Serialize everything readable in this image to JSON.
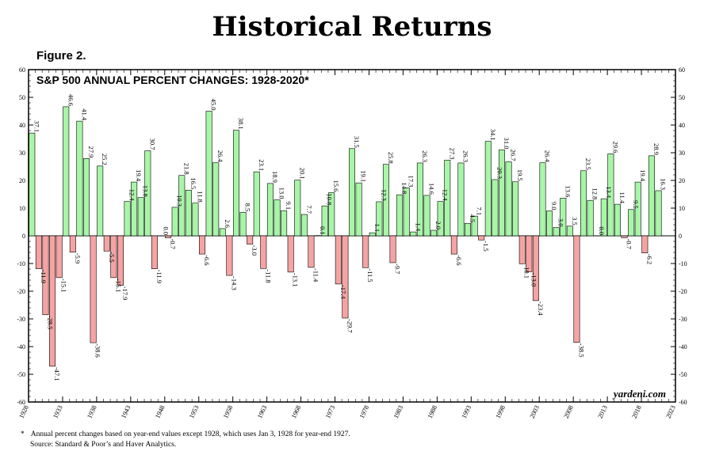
{
  "header": {
    "title": "Historical Returns",
    "figure_label": "Figure 2."
  },
  "watermark": "yardeni.com",
  "footnote": {
    "marker": "*",
    "line1": "Annual percent changes based on year-end values except 1928, which uses Jan 3, 1928 for year-end 1927.",
    "line2": "Source: Standard & Poor’s and Haver Analytics."
  },
  "colors": {
    "positive": "#a8f5a8",
    "negative": "#f5a3a3",
    "bar_edge": "#000000"
  },
  "chart_data": {
    "type": "bar",
    "title": "S&P 500 ANNUAL PERCENT CHANGES: 1928-2020*",
    "xlabel": "",
    "ylabel": "",
    "ylim": [
      -60,
      60
    ],
    "yticks": [
      -60,
      -50,
      -40,
      -30,
      -20,
      -10,
      0,
      10,
      20,
      30,
      40,
      50,
      60
    ],
    "xlim": [
      1928,
      2023
    ],
    "xticks": [
      1928,
      1933,
      1938,
      1943,
      1948,
      1953,
      1958,
      1963,
      1968,
      1973,
      1978,
      1983,
      1988,
      1993,
      1998,
      2003,
      2008,
      2013,
      2018,
      2023
    ],
    "grid": false,
    "years": [
      1928,
      1929,
      1930,
      1931,
      1932,
      1933,
      1934,
      1935,
      1936,
      1937,
      1938,
      1939,
      1940,
      1941,
      1942,
      1943,
      1944,
      1945,
      1946,
      1947,
      1948,
      1949,
      1950,
      1951,
      1952,
      1953,
      1954,
      1955,
      1956,
      1957,
      1958,
      1959,
      1960,
      1961,
      1962,
      1963,
      1964,
      1965,
      1966,
      1967,
      1968,
      1969,
      1970,
      1971,
      1972,
      1973,
      1974,
      1975,
      1976,
      1977,
      1978,
      1979,
      1980,
      1981,
      1982,
      1983,
      1984,
      1985,
      1986,
      1987,
      1988,
      1989,
      1990,
      1991,
      1992,
      1993,
      1994,
      1995,
      1996,
      1997,
      1998,
      1999,
      2000,
      2001,
      2002,
      2003,
      2004,
      2005,
      2006,
      2007,
      2008,
      2009,
      2010,
      2011,
      2012,
      2013,
      2014,
      2015,
      2016,
      2017,
      2018,
      2019,
      2020
    ],
    "values": [
      37.1,
      -11.9,
      -28.5,
      -47.1,
      -15.1,
      46.6,
      -5.9,
      41.4,
      27.9,
      -38.6,
      25.2,
      -5.5,
      -15.1,
      -17.9,
      12.4,
      19.4,
      13.8,
      30.7,
      -11.9,
      0.0,
      -0.7,
      10.3,
      21.8,
      16.5,
      11.8,
      -6.6,
      45.0,
      26.4,
      2.6,
      -14.3,
      38.1,
      8.5,
      -3.0,
      23.1,
      -11.8,
      18.9,
      13.0,
      9.1,
      -13.1,
      20.1,
      7.7,
      -11.4,
      0.1,
      10.8,
      15.6,
      -17.4,
      -29.7,
      31.5,
      19.1,
      -11.5,
      1.1,
      12.3,
      25.8,
      -9.7,
      14.8,
      17.3,
      1.4,
      26.3,
      14.6,
      2.0,
      12.4,
      27.3,
      -6.6,
      26.3,
      4.5,
      7.1,
      -1.5,
      34.1,
      20.3,
      31.0,
      26.7,
      19.5,
      -10.1,
      -13.0,
      -23.4,
      26.4,
      9.0,
      3.0,
      13.6,
      3.5,
      -38.5,
      23.5,
      12.8,
      0.0,
      13.4,
      29.6,
      11.4,
      -0.7,
      9.5,
      19.4,
      -6.2,
      28.9,
      16.3
    ],
    "labels": [
      "37.1",
      "-11.9",
      "-28.5",
      "-47.1",
      "-15.1",
      "46.6",
      "-5.9",
      "41.4",
      "27.9",
      "-38.6",
      "25.2",
      "-5.5",
      "-15.1",
      "-17.9",
      "12.4",
      "19.4",
      "13.8",
      "30.7",
      "-11.9",
      "0.0",
      "-0.7",
      "10.3",
      "21.8",
      "16.5",
      "11.8",
      "-6.6",
      "45.0",
      "26.4",
      "2.6",
      "-14.3",
      "38.1",
      "8.5",
      "-3.0",
      "23.1",
      "-11.8",
      "18.9",
      "13.0",
      "9.1",
      "-13.1",
      "20.1",
      "7.7",
      "-11.4",
      "0.1",
      "10.8",
      "15.6",
      "-17.4",
      "-29.7",
      "31.5",
      "19.1",
      "-11.5",
      "1.1",
      "12.3",
      "25.8",
      "-9.7",
      "14.8",
      "17.3",
      "1.4",
      "26.3",
      "14.6",
      "2.0",
      "12.4",
      "27.3",
      "-6.6",
      "26.3",
      "4.5",
      "7.1",
      "-1.5",
      "34.1",
      "20.3",
      "31.0",
      "26.7",
      "19.5",
      "-10.1",
      "-13.0",
      "-23.4",
      "26.4",
      "9.0",
      "3.0",
      "13.6",
      "3.5",
      "-38.5",
      "23.5",
      "12.8",
      "0.0",
      "13.4",
      "29.6",
      "11.4",
      "-0.7",
      "9.5",
      "19.4",
      "-6.2",
      "28.9",
      "16.3"
    ]
  }
}
